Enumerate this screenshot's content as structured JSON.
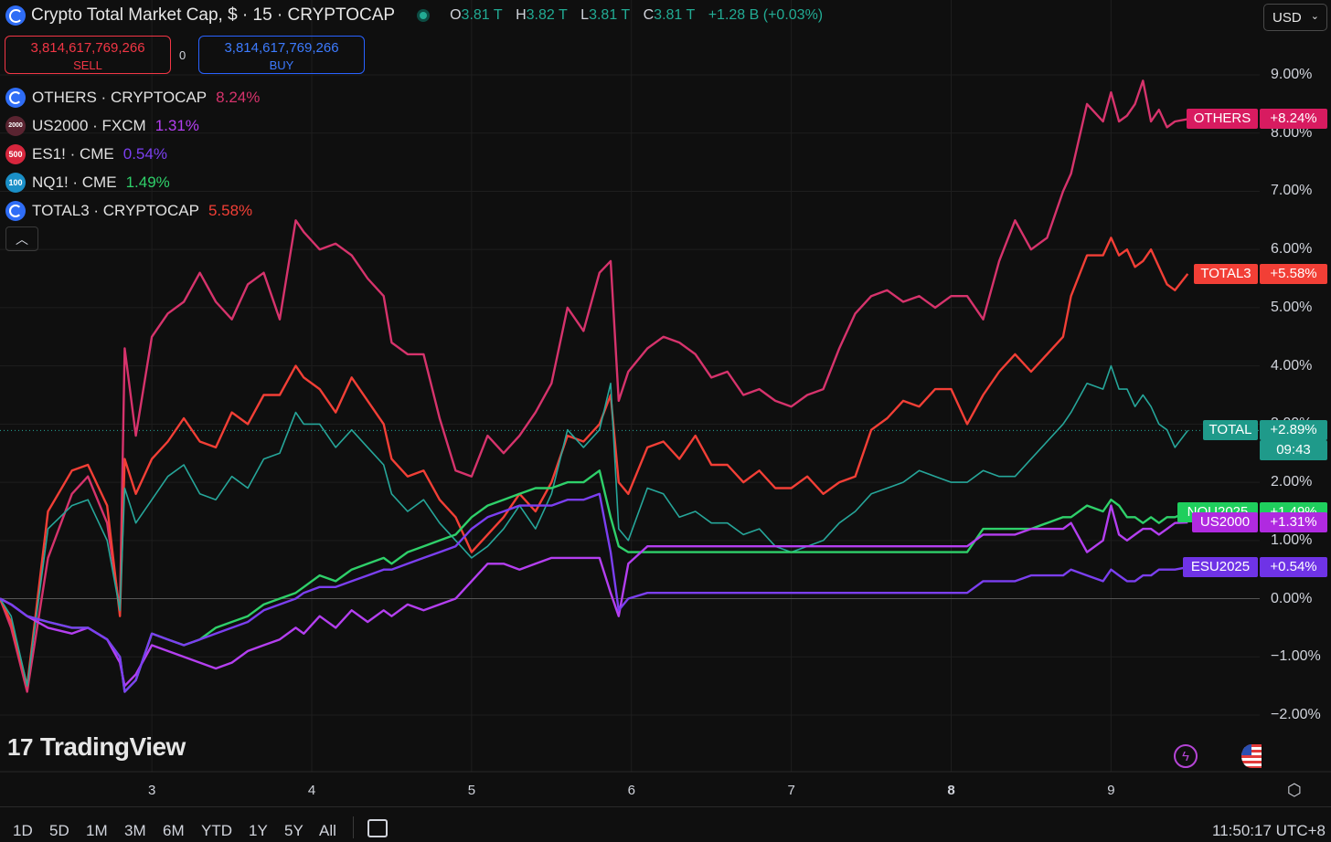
{
  "header": {
    "title": "Crypto Total Market Cap, $ · 15 · CRYPTOCAP",
    "ohlc": {
      "o_label": "O",
      "o": "3.81 T",
      "h_label": "H",
      "h": "3.82 T",
      "l_label": "L",
      "l": "3.81 T",
      "c_label": "C",
      "c": "3.81 T",
      "change": "+1.28 B (+0.03%)"
    }
  },
  "trade": {
    "sell_price": "3,814,617,769,266",
    "sell_label": "SELL",
    "spread": "0",
    "buy_price": "3,814,617,769,266",
    "buy_label": "BUY"
  },
  "currency": "USD",
  "legend": [
    {
      "symbol": "OTHERS · CRYPTOCAP",
      "value": "8.24%",
      "color": "#d6336c",
      "icon": "cryptocap-icon",
      "icon_bg": "#2f6df6",
      "icon_text": ""
    },
    {
      "symbol": "US2000 · FXCM",
      "value": "1.31%",
      "color": "#b43ff0",
      "icon": "us2000-icon",
      "icon_bg": "#5a2431",
      "icon_text": "2000"
    },
    {
      "symbol": "ES1! · CME",
      "value": "0.54%",
      "color": "#7b3ff0",
      "icon": "sp500-icon",
      "icon_bg": "#d7263d",
      "icon_text": "500"
    },
    {
      "symbol": "NQ1! · CME",
      "value": "1.49%",
      "color": "#2fd06a",
      "icon": "nasdaq100-icon",
      "icon_bg": "#1a8fc7",
      "icon_text": "100"
    },
    {
      "symbol": "TOTAL3 · CRYPTOCAP",
      "value": "5.58%",
      "color": "#f23f36",
      "icon": "cryptocap-icon",
      "icon_bg": "#2f6df6",
      "icon_text": ""
    }
  ],
  "chart_data": {
    "type": "line",
    "x_unit": "day",
    "xlim": [
      2.05,
      9.93
    ],
    "ylim": [
      -2.0,
      9.0
    ],
    "y_ticks": [
      "9.00%",
      "8.00%",
      "7.00%",
      "6.00%",
      "5.00%",
      "4.00%",
      "3.00%",
      "2.00%",
      "1.00%",
      "0.00%",
      "−1.00%",
      "−2.00%"
    ],
    "x_ticks": [
      {
        "label": "3",
        "x": 3
      },
      {
        "label": "4",
        "x": 4
      },
      {
        "label": "5",
        "x": 5
      },
      {
        "label": "6",
        "x": 6
      },
      {
        "label": "7",
        "x": 7
      },
      {
        "label": "8",
        "x": 8,
        "bold": true
      },
      {
        "label": "9",
        "x": 9
      }
    ],
    "series": [
      {
        "name": "OTHERS",
        "color": "#d6336c",
        "x": [
          2.05,
          2.12,
          2.22,
          2.35,
          2.5,
          2.6,
          2.72,
          2.8,
          2.83,
          2.9,
          3.0,
          3.1,
          3.2,
          3.3,
          3.4,
          3.5,
          3.6,
          3.7,
          3.8,
          3.9,
          3.95,
          4.05,
          4.15,
          4.25,
          4.35,
          4.45,
          4.5,
          4.6,
          4.7,
          4.8,
          4.9,
          5.0,
          5.1,
          5.2,
          5.3,
          5.4,
          5.5,
          5.6,
          5.7,
          5.8,
          5.87,
          5.92,
          5.98,
          6.1,
          6.2,
          6.3,
          6.4,
          6.5,
          6.6,
          6.7,
          6.8,
          6.9,
          7.0,
          7.1,
          7.2,
          7.3,
          7.4,
          7.5,
          7.6,
          7.7,
          7.8,
          7.9,
          8.0,
          8.1,
          8.2,
          8.3,
          8.4,
          8.5,
          8.6,
          8.7,
          8.75,
          8.85,
          8.95,
          9.0,
          9.05,
          9.1,
          9.15,
          9.2,
          9.25,
          9.3,
          9.35,
          9.4,
          9.48
        ],
        "values": [
          0.0,
          -0.5,
          -1.6,
          0.7,
          1.8,
          2.1,
          1.3,
          -0.2,
          4.3,
          2.8,
          4.5,
          4.9,
          5.1,
          5.6,
          5.1,
          4.8,
          5.4,
          5.6,
          4.8,
          6.5,
          6.3,
          6.0,
          6.1,
          5.9,
          5.5,
          5.2,
          4.4,
          4.2,
          4.2,
          3.1,
          2.2,
          2.1,
          2.8,
          2.5,
          2.8,
          3.2,
          3.7,
          5.0,
          4.6,
          5.6,
          5.8,
          3.4,
          3.9,
          4.3,
          4.5,
          4.4,
          4.2,
          3.8,
          3.9,
          3.5,
          3.6,
          3.4,
          3.3,
          3.5,
          3.6,
          4.3,
          4.9,
          5.2,
          5.3,
          5.1,
          5.2,
          5.0,
          5.2,
          5.2,
          4.8,
          5.8,
          6.5,
          6.0,
          6.2,
          7.0,
          7.3,
          8.5,
          8.2,
          8.7,
          8.2,
          8.3,
          8.5,
          8.9,
          8.2,
          8.4,
          8.1,
          8.2,
          8.24
        ]
      },
      {
        "name": "TOTAL3",
        "color": "#f23f36",
        "x": [
          2.05,
          2.12,
          2.22,
          2.35,
          2.5,
          2.6,
          2.72,
          2.8,
          2.83,
          2.9,
          3.0,
          3.1,
          3.2,
          3.3,
          3.4,
          3.5,
          3.6,
          3.7,
          3.8,
          3.9,
          3.95,
          4.05,
          4.15,
          4.25,
          4.35,
          4.45,
          4.5,
          4.6,
          4.7,
          4.8,
          4.9,
          5.0,
          5.1,
          5.2,
          5.3,
          5.4,
          5.5,
          5.6,
          5.7,
          5.8,
          5.87,
          5.92,
          5.98,
          6.1,
          6.2,
          6.3,
          6.4,
          6.5,
          6.6,
          6.7,
          6.8,
          6.9,
          7.0,
          7.1,
          7.2,
          7.3,
          7.4,
          7.5,
          7.6,
          7.7,
          7.8,
          7.9,
          8.0,
          8.1,
          8.2,
          8.3,
          8.4,
          8.5,
          8.6,
          8.7,
          8.75,
          8.85,
          8.95,
          9.0,
          9.05,
          9.1,
          9.15,
          9.2,
          9.25,
          9.3,
          9.35,
          9.4,
          9.48
        ],
        "values": [
          0.0,
          -0.4,
          -1.5,
          1.5,
          2.2,
          2.3,
          1.6,
          -0.3,
          2.4,
          1.8,
          2.4,
          2.7,
          3.1,
          2.7,
          2.6,
          3.2,
          3.0,
          3.5,
          3.5,
          4.0,
          3.8,
          3.6,
          3.2,
          3.8,
          3.4,
          3.0,
          2.4,
          2.1,
          2.2,
          1.7,
          1.4,
          0.8,
          1.1,
          1.4,
          1.8,
          1.5,
          2.0,
          2.8,
          2.7,
          3.0,
          3.5,
          2.0,
          1.8,
          2.6,
          2.7,
          2.4,
          2.8,
          2.3,
          2.3,
          2.0,
          2.2,
          1.9,
          1.9,
          2.1,
          1.8,
          2.0,
          2.1,
          2.9,
          3.1,
          3.4,
          3.3,
          3.6,
          3.6,
          3.0,
          3.5,
          3.9,
          4.2,
          3.9,
          4.2,
          4.5,
          5.2,
          5.9,
          5.9,
          6.2,
          5.9,
          6.0,
          5.7,
          5.8,
          6.0,
          5.7,
          5.4,
          5.3,
          5.58
        ]
      },
      {
        "name": "TOTAL",
        "color": "#26a69a",
        "x": [
          2.05,
          2.12,
          2.22,
          2.35,
          2.5,
          2.6,
          2.72,
          2.8,
          2.83,
          2.9,
          3.0,
          3.1,
          3.2,
          3.3,
          3.4,
          3.5,
          3.6,
          3.7,
          3.8,
          3.9,
          3.95,
          4.05,
          4.15,
          4.25,
          4.35,
          4.45,
          4.5,
          4.6,
          4.7,
          4.8,
          4.9,
          5.0,
          5.1,
          5.2,
          5.3,
          5.4,
          5.5,
          5.6,
          5.7,
          5.8,
          5.87,
          5.92,
          5.98,
          6.1,
          6.2,
          6.3,
          6.4,
          6.5,
          6.6,
          6.7,
          6.8,
          6.9,
          7.0,
          7.1,
          7.2,
          7.3,
          7.4,
          7.5,
          7.6,
          7.7,
          7.8,
          7.9,
          8.0,
          8.1,
          8.2,
          8.3,
          8.4,
          8.5,
          8.6,
          8.7,
          8.75,
          8.85,
          8.95,
          9.0,
          9.05,
          9.1,
          9.15,
          9.2,
          9.25,
          9.3,
          9.35,
          9.4,
          9.48
        ],
        "values": [
          0.0,
          -0.3,
          -1.5,
          1.2,
          1.6,
          1.7,
          1.0,
          -0.2,
          1.9,
          1.3,
          1.7,
          2.1,
          2.3,
          1.8,
          1.7,
          2.1,
          1.9,
          2.4,
          2.5,
          3.2,
          3.0,
          3.0,
          2.6,
          2.9,
          2.6,
          2.3,
          1.8,
          1.5,
          1.7,
          1.3,
          1.0,
          0.7,
          0.9,
          1.2,
          1.6,
          1.2,
          1.8,
          2.9,
          2.6,
          2.9,
          3.7,
          1.2,
          1.0,
          1.9,
          1.8,
          1.4,
          1.5,
          1.3,
          1.3,
          1.1,
          1.2,
          0.9,
          0.8,
          0.9,
          1.0,
          1.3,
          1.5,
          1.8,
          1.9,
          2.0,
          2.2,
          2.1,
          2.0,
          2.0,
          2.2,
          2.1,
          2.1,
          2.4,
          2.7,
          3.0,
          3.2,
          3.7,
          3.6,
          4.0,
          3.6,
          3.6,
          3.3,
          3.5,
          3.3,
          3.0,
          2.9,
          2.6,
          2.89
        ]
      },
      {
        "name": "NQU2025",
        "color": "#2fd06a",
        "x": [
          2.05,
          2.12,
          2.22,
          2.35,
          2.5,
          2.6,
          2.72,
          2.8,
          2.83,
          2.9,
          3.0,
          3.1,
          3.2,
          3.3,
          3.4,
          3.5,
          3.6,
          3.7,
          3.8,
          3.9,
          3.95,
          4.05,
          4.15,
          4.25,
          4.35,
          4.45,
          4.5,
          4.6,
          4.7,
          4.8,
          4.9,
          5.0,
          5.1,
          5.2,
          5.3,
          5.4,
          5.5,
          5.6,
          5.7,
          5.8,
          5.87,
          5.92,
          5.98,
          6.1,
          6.2,
          6.3,
          6.4,
          6.5,
          6.6,
          6.7,
          6.8,
          6.9,
          7.0,
          7.1,
          7.2,
          7.3,
          7.4,
          7.5,
          7.6,
          7.7,
          7.8,
          7.9,
          8.0,
          8.1,
          8.2,
          8.3,
          8.4,
          8.5,
          8.6,
          8.7,
          8.75,
          8.85,
          8.95,
          9.0,
          9.05,
          9.1,
          9.15,
          9.2,
          9.25,
          9.3,
          9.35,
          9.4,
          9.48
        ],
        "values": [
          0.0,
          -0.1,
          -0.3,
          -0.4,
          -0.5,
          -0.5,
          -0.7,
          -1.0,
          -1.6,
          -1.4,
          -0.6,
          -0.7,
          -0.8,
          -0.7,
          -0.5,
          -0.4,
          -0.3,
          -0.1,
          0.0,
          0.1,
          0.2,
          0.4,
          0.3,
          0.5,
          0.6,
          0.7,
          0.6,
          0.8,
          0.9,
          1.0,
          1.1,
          1.4,
          1.6,
          1.7,
          1.8,
          1.9,
          1.9,
          2.0,
          2.0,
          2.2,
          1.4,
          0.9,
          0.8,
          0.8,
          0.8,
          0.8,
          0.8,
          0.8,
          0.8,
          0.8,
          0.8,
          0.8,
          0.8,
          0.8,
          0.8,
          0.8,
          0.8,
          0.8,
          0.8,
          0.8,
          0.8,
          0.8,
          0.8,
          0.8,
          1.2,
          1.2,
          1.2,
          1.2,
          1.3,
          1.4,
          1.4,
          1.6,
          1.5,
          1.7,
          1.6,
          1.4,
          1.4,
          1.3,
          1.4,
          1.3,
          1.4,
          1.4,
          1.49
        ]
      },
      {
        "name": "US2000",
        "color": "#b43ff0",
        "x": [
          2.05,
          2.12,
          2.22,
          2.35,
          2.5,
          2.6,
          2.72,
          2.8,
          2.83,
          2.9,
          3.0,
          3.1,
          3.2,
          3.3,
          3.4,
          3.5,
          3.6,
          3.7,
          3.8,
          3.9,
          3.95,
          4.05,
          4.15,
          4.25,
          4.35,
          4.45,
          4.5,
          4.6,
          4.7,
          4.8,
          4.9,
          5.0,
          5.1,
          5.2,
          5.3,
          5.4,
          5.5,
          5.6,
          5.7,
          5.8,
          5.87,
          5.92,
          5.98,
          6.1,
          6.2,
          6.3,
          6.4,
          6.5,
          6.6,
          6.7,
          6.8,
          6.9,
          7.0,
          7.1,
          7.2,
          7.3,
          7.4,
          7.5,
          7.6,
          7.7,
          7.8,
          7.9,
          8.0,
          8.1,
          8.2,
          8.3,
          8.4,
          8.5,
          8.6,
          8.7,
          8.75,
          8.85,
          8.95,
          9.0,
          9.05,
          9.1,
          9.15,
          9.2,
          9.25,
          9.3,
          9.35,
          9.4,
          9.48
        ],
        "values": [
          0.0,
          -0.1,
          -0.3,
          -0.5,
          -0.6,
          -0.5,
          -0.7,
          -1.1,
          -1.5,
          -1.3,
          -0.8,
          -0.9,
          -1.0,
          -1.1,
          -1.2,
          -1.1,
          -0.9,
          -0.8,
          -0.7,
          -0.5,
          -0.6,
          -0.3,
          -0.5,
          -0.2,
          -0.4,
          -0.2,
          -0.3,
          -0.1,
          -0.2,
          -0.1,
          0.0,
          0.3,
          0.6,
          0.6,
          0.5,
          0.6,
          0.7,
          0.7,
          0.7,
          0.7,
          0.1,
          -0.3,
          0.6,
          0.9,
          0.9,
          0.9,
          0.9,
          0.9,
          0.9,
          0.9,
          0.9,
          0.9,
          0.9,
          0.9,
          0.9,
          0.9,
          0.9,
          0.9,
          0.9,
          0.9,
          0.9,
          0.9,
          0.9,
          0.9,
          1.1,
          1.1,
          1.1,
          1.2,
          1.2,
          1.2,
          1.3,
          0.8,
          1.0,
          1.6,
          1.1,
          1.0,
          1.1,
          1.2,
          1.2,
          1.1,
          1.2,
          1.3,
          1.31
        ]
      },
      {
        "name": "ESU2025",
        "color": "#7b3ff0",
        "x": [
          2.05,
          2.12,
          2.22,
          2.35,
          2.5,
          2.6,
          2.72,
          2.8,
          2.83,
          2.9,
          3.0,
          3.1,
          3.2,
          3.3,
          3.4,
          3.5,
          3.6,
          3.7,
          3.8,
          3.9,
          3.95,
          4.05,
          4.15,
          4.25,
          4.35,
          4.45,
          4.5,
          4.6,
          4.7,
          4.8,
          4.9,
          5.0,
          5.1,
          5.2,
          5.3,
          5.4,
          5.5,
          5.6,
          5.7,
          5.8,
          5.87,
          5.92,
          5.98,
          6.1,
          6.2,
          6.3,
          6.4,
          6.5,
          6.6,
          6.7,
          6.8,
          6.9,
          7.0,
          7.1,
          7.2,
          7.3,
          7.4,
          7.5,
          7.6,
          7.7,
          7.8,
          7.9,
          8.0,
          8.1,
          8.2,
          8.3,
          8.4,
          8.5,
          8.6,
          8.7,
          8.75,
          8.85,
          8.95,
          9.0,
          9.05,
          9.1,
          9.15,
          9.2,
          9.25,
          9.3,
          9.35,
          9.4,
          9.48
        ],
        "values": [
          0.0,
          -0.1,
          -0.3,
          -0.4,
          -0.5,
          -0.5,
          -0.7,
          -1.0,
          -1.6,
          -1.4,
          -0.6,
          -0.7,
          -0.8,
          -0.7,
          -0.6,
          -0.5,
          -0.4,
          -0.2,
          -0.1,
          0.0,
          0.1,
          0.2,
          0.2,
          0.3,
          0.4,
          0.5,
          0.5,
          0.6,
          0.7,
          0.8,
          0.9,
          1.2,
          1.4,
          1.5,
          1.6,
          1.6,
          1.6,
          1.7,
          1.7,
          1.8,
          0.8,
          -0.2,
          0.0,
          0.1,
          0.1,
          0.1,
          0.1,
          0.1,
          0.1,
          0.1,
          0.1,
          0.1,
          0.1,
          0.1,
          0.1,
          0.1,
          0.1,
          0.1,
          0.1,
          0.1,
          0.1,
          0.1,
          0.1,
          0.1,
          0.3,
          0.3,
          0.3,
          0.4,
          0.4,
          0.4,
          0.5,
          0.4,
          0.3,
          0.5,
          0.4,
          0.3,
          0.3,
          0.4,
          0.4,
          0.5,
          0.5,
          0.5,
          0.54
        ]
      }
    ],
    "price_tags": [
      {
        "label": "OTHERS",
        "value": "+8.24%",
        "y": 8.24,
        "color": "#d81b60",
        "time": ""
      },
      {
        "label": "TOTAL3",
        "value": "+5.58%",
        "y": 5.58,
        "color": "#f23f36",
        "time": ""
      },
      {
        "label": "TOTAL",
        "value": "+2.89%",
        "y": 2.89,
        "color": "#1f9a8a",
        "time": "09:43"
      },
      {
        "label": "NQU2025",
        "value": "+1.49%",
        "y": 1.49,
        "color": "#1fcf5d",
        "time": ""
      },
      {
        "label": "US2000",
        "value": "+1.31%",
        "y": 1.31,
        "color": "#b02ae0",
        "time": ""
      },
      {
        "label": "ESU2025",
        "value": "+0.54%",
        "y": 0.54,
        "color": "#6f33e6",
        "time": ""
      }
    ]
  },
  "watermark": "TradingView",
  "timeframes": [
    "1D",
    "5D",
    "1M",
    "3M",
    "6M",
    "YTD",
    "1Y",
    "5Y",
    "All"
  ],
  "clock": "11:50:17 UTC+8"
}
